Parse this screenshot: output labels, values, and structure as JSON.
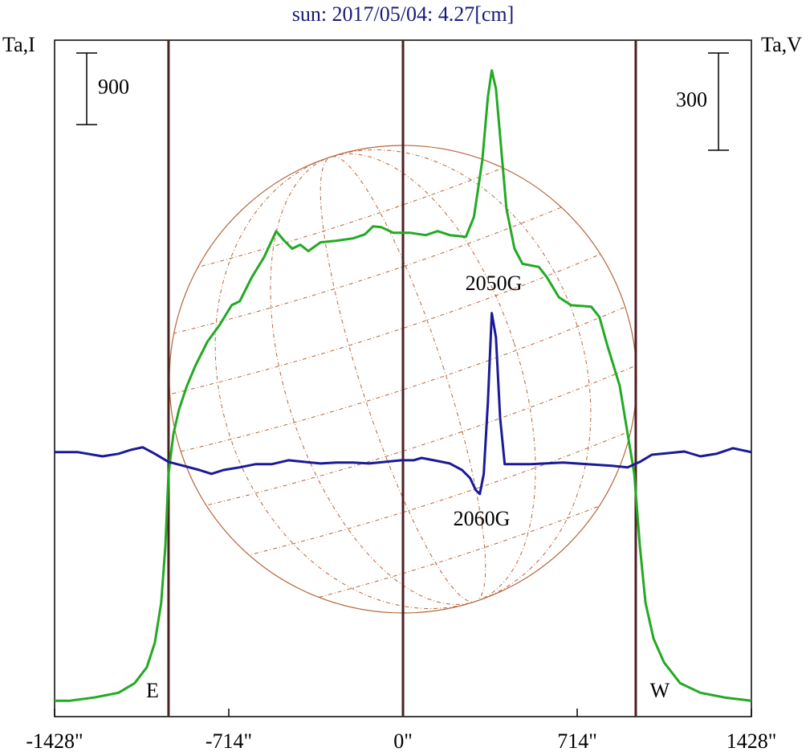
{
  "chart_data": {
    "type": "line",
    "title": "sun: 2017/05/04: 4.27[cm]",
    "ylabel": "Ta,I",
    "y2label": "Ta,V",
    "xlim": [
      -1428,
      1428
    ],
    "xticks": [
      {
        "value": -1428,
        "label": "-1428\""
      },
      {
        "value": -714,
        "label": "-714\""
      },
      {
        "value": 0,
        "label": "0\""
      },
      {
        "value": 714,
        "label": "714\""
      },
      {
        "value": 1428,
        "label": "1428\""
      }
    ],
    "ylim": [
      -200,
      8300
    ],
    "y2lim": [
      -786,
      1301
    ],
    "scale_bars": [
      {
        "label": "900",
        "value": 900,
        "axis": "y"
      },
      {
        "label": "300",
        "value": 300,
        "axis": "y2"
      }
    ],
    "limb_lines": [
      -961,
      0,
      954
    ],
    "limb_labels": [
      "E",
      "W"
    ],
    "annotations": [
      "2050G",
      "2060G"
    ],
    "series": [
      {
        "color": "#22aa22",
        "axis": "y",
        "x": [
          -1428,
          -1365,
          -1266,
          -1166,
          -1100,
          -1050,
          -1017,
          -991,
          -974,
          -961,
          -941,
          -918,
          -885,
          -851,
          -802,
          -752,
          -702,
          -669,
          -620,
          -570,
          -520,
          -487,
          -454,
          -421,
          -388,
          -338,
          -272,
          -205,
          -156,
          -123,
          -89,
          -40,
          27,
          93,
          142,
          192,
          258,
          291,
          325,
          348,
          364,
          381,
          401,
          424,
          457,
          490,
          557,
          590,
          639,
          689,
          772,
          805,
          838,
          888,
          921,
          948,
          971,
          994,
          1027,
          1070,
          1136,
          1219,
          1319,
          1428
        ],
        "values": [
          0,
          0,
          40,
          100,
          220,
          420,
          730,
          1230,
          1940,
          2850,
          3350,
          3660,
          3960,
          4210,
          4510,
          4720,
          4970,
          5020,
          5320,
          5570,
          5900,
          5780,
          5680,
          5730,
          5650,
          5760,
          5780,
          5810,
          5860,
          5960,
          5950,
          5880,
          5880,
          5850,
          5900,
          5850,
          5830,
          6080,
          6790,
          7590,
          7920,
          7690,
          6990,
          6180,
          5680,
          5490,
          5450,
          5320,
          5070,
          4970,
          4950,
          4820,
          4460,
          3960,
          3350,
          2850,
          1940,
          1230,
          780,
          480,
          220,
          100,
          40,
          0
        ]
      },
      {
        "color": "#1a1a99",
        "axis": "y2",
        "x": [
          -1428,
          -1332,
          -1232,
          -1166,
          -1116,
          -1067,
          -1017,
          -961,
          -901,
          -835,
          -785,
          -735,
          -669,
          -603,
          -537,
          -470,
          -404,
          -338,
          -272,
          -205,
          -139,
          -73,
          -7,
          43,
          76,
          126,
          192,
          242,
          275,
          298,
          315,
          331,
          348,
          364,
          381,
          398,
          417,
          457,
          523,
          656,
          755,
          855,
          921,
          971,
          1020,
          1087,
          1153,
          1219,
          1285,
          1352,
          1428
        ],
        "values": [
          30,
          30,
          17,
          25,
          37,
          45,
          25,
          0,
          -12,
          -25,
          -37,
          -25,
          -17,
          -7,
          -7,
          5,
          0,
          -5,
          -2,
          -2,
          -5,
          0,
          5,
          5,
          12,
          5,
          -5,
          -25,
          -50,
          -87,
          -99,
          -37,
          186,
          459,
          384,
          136,
          -7,
          -7,
          -7,
          -2,
          -7,
          -12,
          -17,
          0,
          22,
          27,
          32,
          17,
          25,
          42,
          30
        ]
      }
    ]
  }
}
